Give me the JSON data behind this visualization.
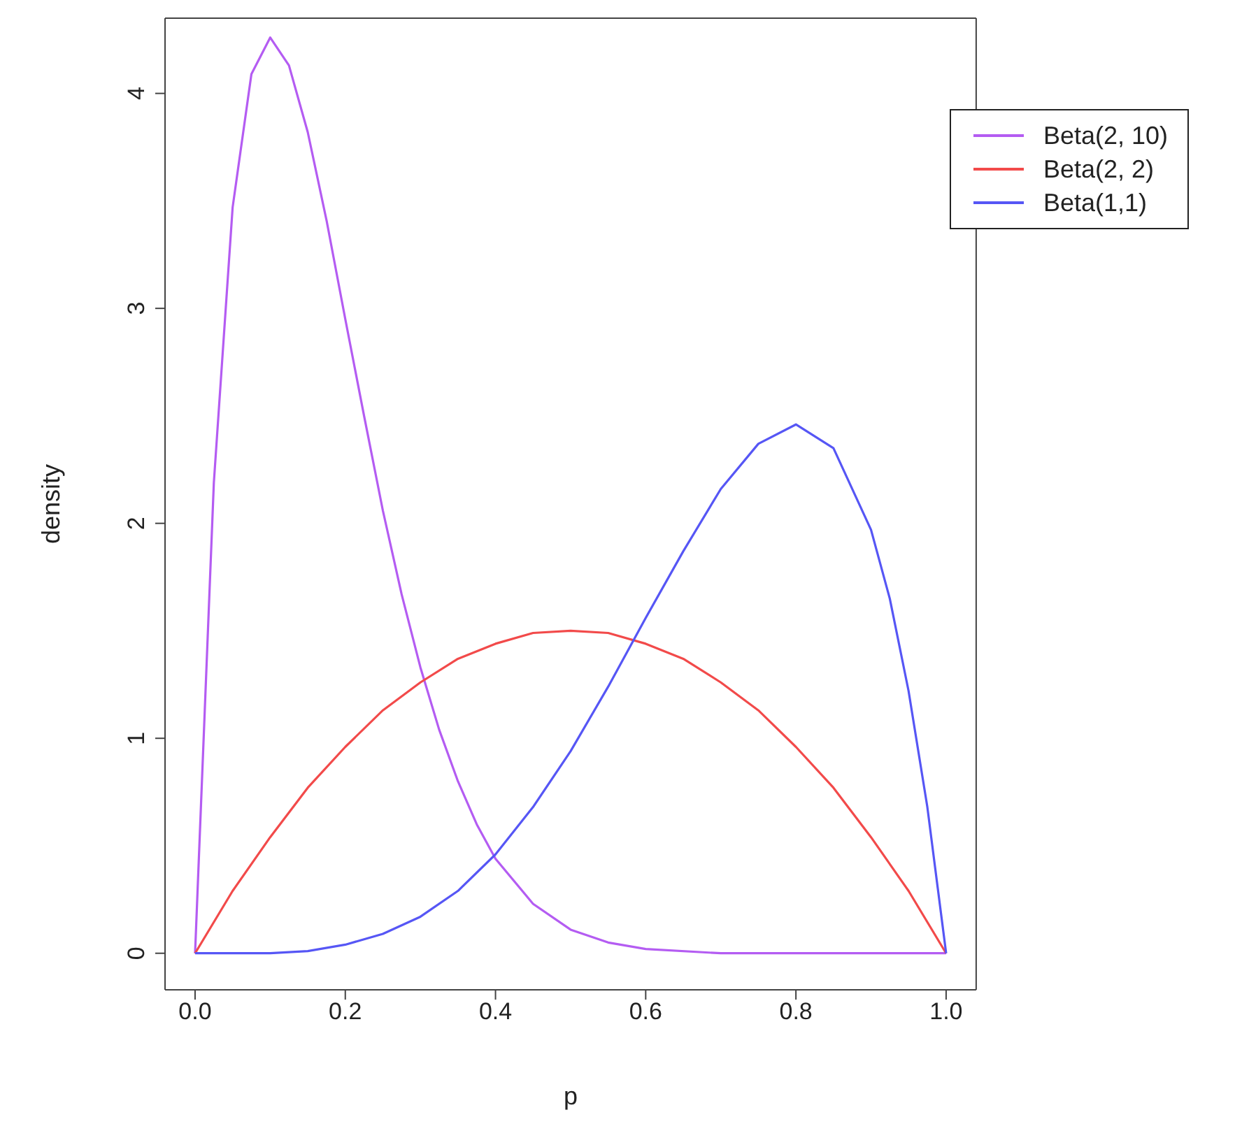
{
  "chart_data": {
    "type": "line",
    "xlabel": "p",
    "ylabel": "density",
    "xlim": [
      -0.04,
      1.04
    ],
    "ylim": [
      -0.17,
      4.35
    ],
    "xticks": [
      {
        "value": 0,
        "label": "0.0"
      },
      {
        "value": 0.2,
        "label": "0.2"
      },
      {
        "value": 0.4,
        "label": "0.4"
      },
      {
        "value": 0.6,
        "label": "0.6"
      },
      {
        "value": 0.8,
        "label": "0.8"
      },
      {
        "value": 1,
        "label": "1.0"
      }
    ],
    "yticks": [
      0,
      1,
      2,
      3,
      4
    ],
    "grid": false,
    "legend": "top right",
    "marker": "none",
    "line_style": "solid",
    "series": [
      {
        "name": "Beta(2, 10)",
        "color": "#b45cf2",
        "x": [
          0,
          0.025,
          0.05,
          0.075,
          0.1,
          0.125,
          0.15,
          0.175,
          0.2,
          0.225,
          0.25,
          0.275,
          0.3,
          0.325,
          0.35,
          0.375,
          0.4,
          0.45,
          0.5,
          0.55,
          0.6,
          0.7,
          0.8,
          0.9,
          1
        ],
        "values": [
          0,
          2.19,
          3.47,
          4.09,
          4.26,
          4.13,
          3.82,
          3.41,
          2.95,
          2.5,
          2.06,
          1.67,
          1.33,
          1.04,
          0.8,
          0.6,
          0.44,
          0.23,
          0.11,
          0.05,
          0.02,
          0,
          0,
          0,
          0
        ]
      },
      {
        "name": "Beta(2, 2)",
        "color": "#f24a4a",
        "x": [
          0,
          0.05,
          0.1,
          0.15,
          0.2,
          0.25,
          0.3,
          0.35,
          0.4,
          0.45,
          0.5,
          0.55,
          0.6,
          0.65,
          0.7,
          0.75,
          0.8,
          0.85,
          0.9,
          0.95,
          1
        ],
        "values": [
          0,
          0.29,
          0.54,
          0.77,
          0.96,
          1.13,
          1.26,
          1.37,
          1.44,
          1.49,
          1.5,
          1.49,
          1.44,
          1.37,
          1.26,
          1.13,
          0.96,
          0.77,
          0.54,
          0.29,
          0
        ]
      },
      {
        "name": "Beta(1,1)",
        "color": "#5656f5",
        "x": [
          0,
          0.05,
          0.1,
          0.15,
          0.2,
          0.25,
          0.3,
          0.35,
          0.4,
          0.45,
          0.5,
          0.55,
          0.6,
          0.65,
          0.7,
          0.75,
          0.8,
          0.85,
          0.9,
          0.925,
          0.95,
          0.975,
          1
        ],
        "values": [
          0,
          0,
          0,
          0.01,
          0.04,
          0.09,
          0.17,
          0.29,
          0.46,
          0.68,
          0.94,
          1.24,
          1.56,
          1.87,
          2.16,
          2.37,
          2.46,
          2.35,
          1.97,
          1.65,
          1.22,
          0.68,
          0
        ]
      }
    ]
  }
}
